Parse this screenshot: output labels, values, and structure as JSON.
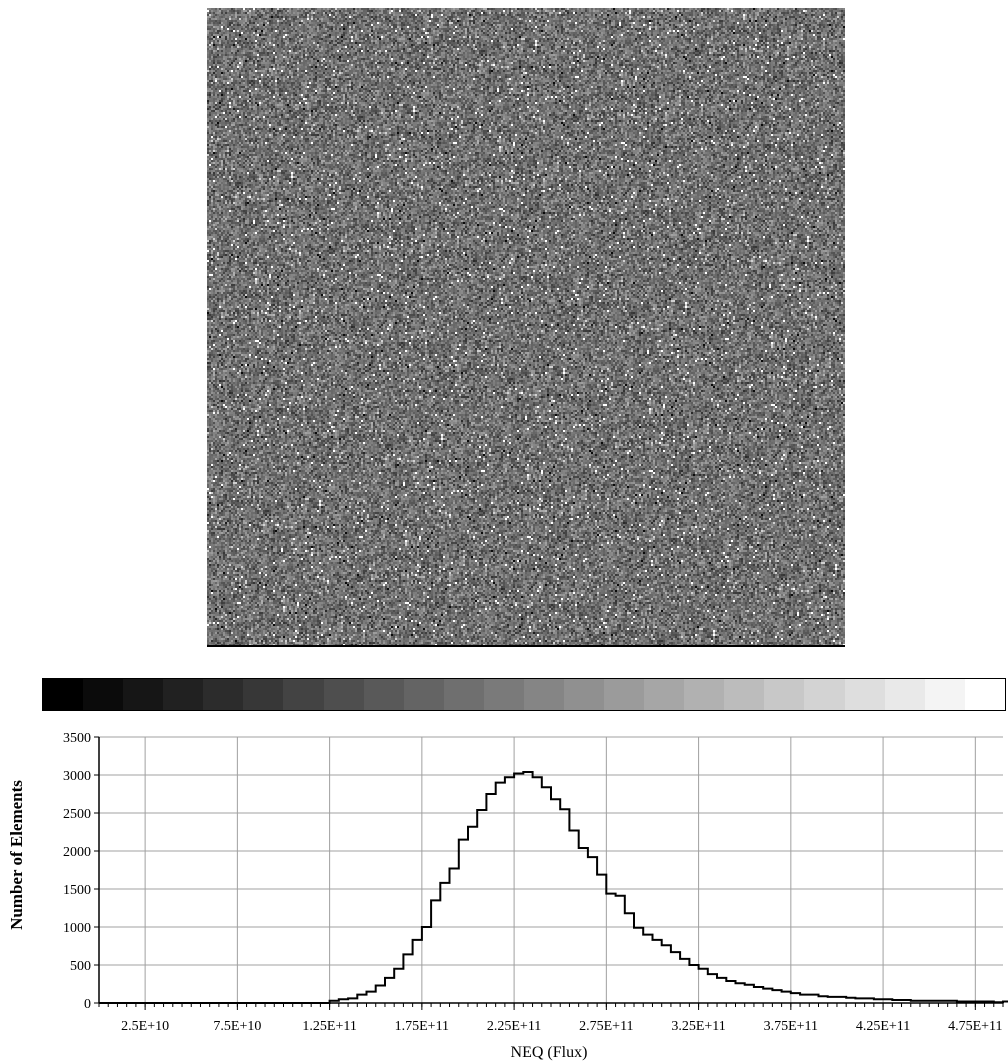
{
  "image": {
    "kind": "grayscale noise map",
    "background_gray": "#707070",
    "hot_pixel_color": "#ffffff",
    "cold_pixel_color": "#000000"
  },
  "colorbar": {
    "levels": 24,
    "from_color": "#000000",
    "to_color": "#ffffff"
  },
  "chart_data": {
    "type": "histogram",
    "xlabel": "NEQ (Flux)",
    "ylabel": "Number of Elements",
    "xlim": [
      0,
      490000000000
    ],
    "ylim": [
      0,
      3500
    ],
    "y_ticks": [
      0,
      500,
      1000,
      1500,
      2000,
      2500,
      3000,
      3500
    ],
    "x_ticks": [
      {
        "value": 25000000000,
        "label": "2.5E+10"
      },
      {
        "value": 75000000000,
        "label": "7.5E+10"
      },
      {
        "value": 125000000000,
        "label": "1.25E+11"
      },
      {
        "value": 175000000000,
        "label": "1.75E+11"
      },
      {
        "value": 225000000000,
        "label": "2.25E+11"
      },
      {
        "value": 275000000000,
        "label": "2.75E+11"
      },
      {
        "value": 325000000000,
        "label": "3.25E+11"
      },
      {
        "value": 375000000000,
        "label": "3.75E+11"
      },
      {
        "value": 425000000000,
        "label": "4.25E+11"
      },
      {
        "value": 475000000000,
        "label": "4.75E+11"
      }
    ],
    "grid": true,
    "bin_width": 5000000000,
    "bin_start": 0,
    "counts": [
      0,
      0,
      0,
      0,
      0,
      0,
      0,
      0,
      0,
      0,
      0,
      0,
      0,
      0,
      0,
      0,
      0,
      0,
      0,
      0,
      0,
      0,
      0,
      0,
      0,
      30,
      50,
      60,
      110,
      150,
      230,
      330,
      450,
      640,
      830,
      1000,
      1350,
      1580,
      1770,
      2150,
      2320,
      2540,
      2750,
      2900,
      2970,
      3020,
      3040,
      2970,
      2840,
      2680,
      2550,
      2270,
      2040,
      1920,
      1690,
      1440,
      1410,
      1180,
      990,
      900,
      830,
      760,
      670,
      580,
      500,
      450,
      380,
      330,
      290,
      260,
      240,
      210,
      190,
      170,
      150,
      130,
      110,
      110,
      90,
      80,
      80,
      70,
      60,
      60,
      50,
      50,
      40,
      40,
      30,
      30,
      30,
      30,
      30,
      20,
      20,
      20,
      20,
      10,
      20,
      20
    ]
  }
}
